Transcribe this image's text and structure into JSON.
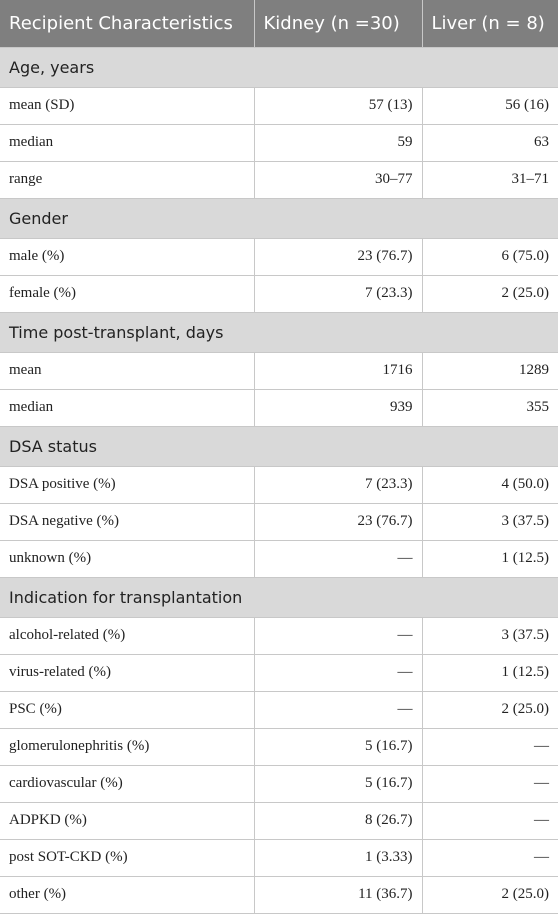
{
  "table": {
    "headers": [
      "Recipient Characteristics",
      "Kidney (n =30)",
      "Liver (n = 8)"
    ],
    "sections": [
      {
        "title": "Age, years",
        "rows": [
          {
            "label": "mean (SD)",
            "kidney": "57 (13)",
            "liver": "56 (16)"
          },
          {
            "label": "median",
            "kidney": "59",
            "liver": "63"
          },
          {
            "label": "range",
            "kidney": "30–77",
            "liver": "31–71"
          }
        ]
      },
      {
        "title": "Gender",
        "rows": [
          {
            "label": "male (%)",
            "kidney": "23 (76.7)",
            "liver": "6 (75.0)"
          },
          {
            "label": "female (%)",
            "kidney": "7 (23.3)",
            "liver": "2 (25.0)"
          }
        ]
      },
      {
        "title": "Time post-transplant, days",
        "rows": [
          {
            "label": "mean",
            "kidney": "1716",
            "liver": "1289"
          },
          {
            "label": "median",
            "kidney": "939",
            "liver": "355"
          }
        ]
      },
      {
        "title": "DSA status",
        "rows": [
          {
            "label": "DSA positive (%)",
            "kidney": "7 (23.3)",
            "liver": "4 (50.0)"
          },
          {
            "label": "DSA negative (%)",
            "kidney": "23 (76.7)",
            "liver": "3 (37.5)"
          },
          {
            "label": "unknown (%)",
            "kidney": "—",
            "liver": "1 (12.5)"
          }
        ]
      },
      {
        "title": "Indication for transplantation",
        "rows": [
          {
            "label": "alcohol-related (%)",
            "kidney": "—",
            "liver": "3 (37.5)"
          },
          {
            "label": "virus-related (%)",
            "kidney": "—",
            "liver": "1 (12.5)"
          },
          {
            "label": "PSC (%)",
            "kidney": "—",
            "liver": "2 (25.0)"
          },
          {
            "label": "glomerulonephritis (%)",
            "kidney": "5 (16.7)",
            "liver": "—"
          },
          {
            "label": "cardiovascular (%)",
            "kidney": "5 (16.7)",
            "liver": "—"
          },
          {
            "label": "ADPKD (%)",
            "kidney": "8 (26.7)",
            "liver": "—"
          },
          {
            "label": "post SOT-CKD (%)",
            "kidney": "1 (3.33)",
            "liver": "—"
          },
          {
            "label": "other (%)",
            "kidney": "11 (36.7)",
            "liver": "2 (25.0)"
          }
        ]
      }
    ]
  }
}
